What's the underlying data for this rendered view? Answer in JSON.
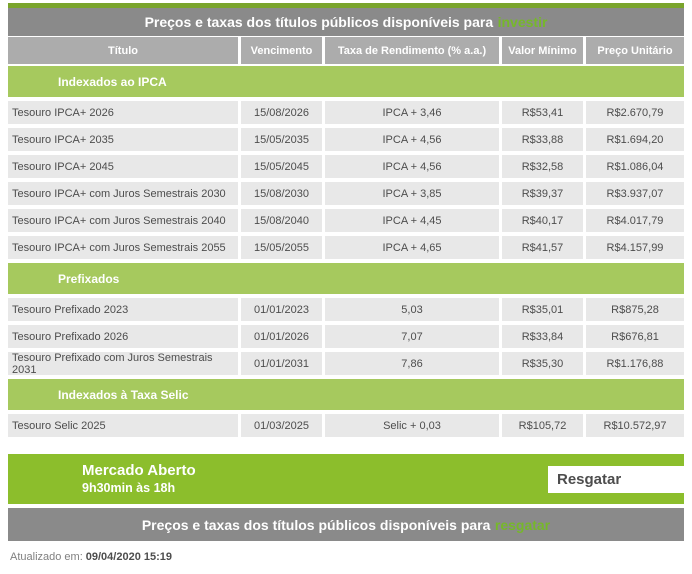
{
  "header": {
    "title_prefix": "Preços e taxas dos títulos públicos disponíveis para",
    "title_highlight": "investir"
  },
  "table": {
    "columns": [
      "Título",
      "Vencimento",
      "Taxa de Rendimento (% a.a.)",
      "Valor Mínimo",
      "Preço Unitário"
    ],
    "sections": [
      {
        "label": "Indexados ao IPCA",
        "rows": [
          {
            "title": "Tesouro IPCA+ 2026",
            "maturity": "15/08/2026",
            "rate": "IPCA + 3,46",
            "min_value": "R$53,41",
            "unit_price": "R$2.670,79"
          },
          {
            "title": "Tesouro IPCA+ 2035",
            "maturity": "15/05/2035",
            "rate": "IPCA + 4,56",
            "min_value": "R$33,88",
            "unit_price": "R$1.694,20"
          },
          {
            "title": "Tesouro IPCA+ 2045",
            "maturity": "15/05/2045",
            "rate": "IPCA + 4,56",
            "min_value": "R$32,58",
            "unit_price": "R$1.086,04"
          },
          {
            "title": "Tesouro IPCA+ com Juros Semestrais 2030",
            "maturity": "15/08/2030",
            "rate": "IPCA + 3,85",
            "min_value": "R$39,37",
            "unit_price": "R$3.937,07"
          },
          {
            "title": "Tesouro IPCA+ com Juros Semestrais 2040",
            "maturity": "15/08/2040",
            "rate": "IPCA + 4,45",
            "min_value": "R$40,17",
            "unit_price": "R$4.017,79"
          },
          {
            "title": "Tesouro IPCA+ com Juros Semestrais 2055",
            "maturity": "15/05/2055",
            "rate": "IPCA + 4,65",
            "min_value": "R$41,57",
            "unit_price": "R$4.157,99"
          }
        ]
      },
      {
        "label": "Prefixados",
        "rows": [
          {
            "title": "Tesouro Prefixado 2023",
            "maturity": "01/01/2023",
            "rate": "5,03",
            "min_value": "R$35,01",
            "unit_price": "R$875,28"
          },
          {
            "title": "Tesouro Prefixado 2026",
            "maturity": "01/01/2026",
            "rate": "7,07",
            "min_value": "R$33,84",
            "unit_price": "R$676,81"
          },
          {
            "title": "Tesouro Prefixado com Juros Semestrais 2031",
            "maturity": "01/01/2031",
            "rate": "7,86",
            "min_value": "R$35,30",
            "unit_price": "R$1.176,88"
          }
        ]
      },
      {
        "label": "Indexados à Taxa Selic",
        "rows": [
          {
            "title": "Tesouro Selic 2025",
            "maturity": "01/03/2025",
            "rate": "Selic + 0,03",
            "min_value": "R$105,72",
            "unit_price": "R$10.572,97"
          }
        ]
      }
    ]
  },
  "banner": {
    "line1": "Mercado Aberto",
    "line2": "9h30min às 18h",
    "button_label": "Resgatar"
  },
  "footer_bar": {
    "title_prefix": "Preços e taxas dos títulos públicos disponíveis para",
    "title_highlight": "resgatar"
  },
  "footer": {
    "updated_label": "Atualizado em:",
    "updated_value": "09/04/2020 15:19"
  },
  "colors": {
    "accent_green": "#76B82A",
    "top_strip_green": "#7AA42C",
    "section_green": "#A6C95E",
    "banner_green": "#8CBE2C",
    "title_bar_gray": "#8A8A8A",
    "column_header_gray": "#ACACAC",
    "row_gray": "#E8E8E8",
    "text_dark": "#4D4D4D"
  }
}
